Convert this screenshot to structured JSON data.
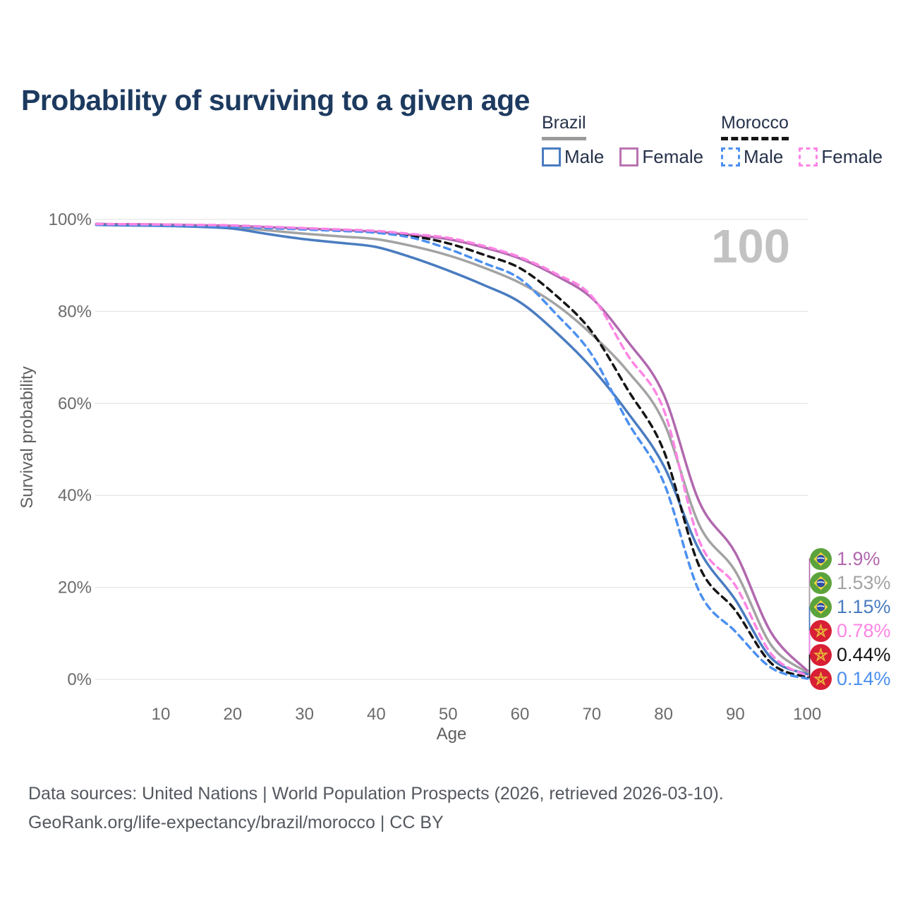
{
  "title": "Probability of surviving to a given age",
  "watermark": "100",
  "legend": {
    "groups": [
      {
        "name": "Brazil",
        "line_style": "solid",
        "items": [
          {
            "label": "Male",
            "color": "#4a7cc0",
            "dashed": false
          },
          {
            "label": "Female",
            "color": "#b973b1",
            "dashed": false
          }
        ]
      },
      {
        "name": "Morocco",
        "line_style": "dashed",
        "items": [
          {
            "label": "Male",
            "color": "#4c90f0",
            "dashed": true
          },
          {
            "label": "Female",
            "color": "#fd85e4",
            "dashed": true
          }
        ]
      }
    ]
  },
  "chart_data": {
    "type": "line",
    "title": "Probability of surviving to a given age",
    "xlabel": "Age",
    "ylabel": "Survival probability",
    "xlim": [
      0,
      100
    ],
    "ylim": [
      0,
      100
    ],
    "grid": "horizontal",
    "legend_position": "top-right",
    "xticks": [
      10,
      20,
      30,
      40,
      50,
      60,
      70,
      80,
      90,
      100
    ],
    "yticks": [
      {
        "value": 0,
        "label": "0%"
      },
      {
        "value": 20,
        "label": "20%"
      },
      {
        "value": 40,
        "label": "40%"
      },
      {
        "value": 60,
        "label": "60%"
      },
      {
        "value": 80,
        "label": "80%"
      },
      {
        "value": 100,
        "label": "100%"
      }
    ],
    "x": [
      1,
      5,
      10,
      15,
      20,
      25,
      30,
      35,
      40,
      45,
      50,
      55,
      60,
      65,
      70,
      75,
      80,
      85,
      90,
      95,
      100
    ],
    "series": [
      {
        "name": "Brazil Male",
        "color": "#4a7cc0",
        "dashed": false,
        "end_value_label": "1.15%",
        "values": [
          98.8,
          98.7,
          98.6,
          98.4,
          98.0,
          96.8,
          95.7,
          94.9,
          94.0,
          91.7,
          88.9,
          85.7,
          82.0,
          75.5,
          67.7,
          58.0,
          46.5,
          28.0,
          17.3,
          4.6,
          1.15
        ]
      },
      {
        "name": "Brazil Female",
        "color": "#b168ae",
        "dashed": false,
        "end_value_label": "1.9%",
        "values": [
          99.0,
          98.95,
          98.9,
          98.75,
          98.6,
          98.3,
          98.0,
          97.7,
          97.3,
          96.6,
          95.7,
          93.9,
          91.5,
          87.8,
          82.9,
          73.5,
          62.0,
          38.5,
          27.5,
          10.1,
          1.9
        ]
      },
      {
        "name": "Brazil Both sexes",
        "color": "#a3a3a3",
        "dashed": false,
        "end_value_label": "1.53%",
        "values": [
          98.9,
          98.85,
          98.75,
          98.6,
          98.3,
          97.6,
          96.9,
          96.3,
          95.7,
          94.2,
          92.2,
          89.5,
          86.2,
          81.5,
          75.0,
          67.0,
          56.0,
          33.5,
          23.5,
          7.4,
          1.53
        ]
      },
      {
        "name": "Morocco Male",
        "color": "#4c90f0",
        "dashed": true,
        "end_value_label": "0.14%",
        "values": [
          98.9,
          98.8,
          98.7,
          98.6,
          98.4,
          98.1,
          97.8,
          97.5,
          97.1,
          96.0,
          93.6,
          90.5,
          87.1,
          79.5,
          70.6,
          56.0,
          42.9,
          19.0,
          10.4,
          2.5,
          0.14
        ]
      },
      {
        "name": "Morocco Female",
        "color": "#fd85e4",
        "dashed": true,
        "end_value_label": "0.78%",
        "values": [
          99.0,
          98.95,
          98.9,
          98.8,
          98.7,
          98.4,
          98.1,
          97.8,
          97.5,
          96.8,
          96.0,
          94.2,
          91.8,
          88.2,
          83.3,
          70.5,
          58.7,
          30.0,
          20.4,
          5.5,
          0.78
        ]
      },
      {
        "name": "Morocco Both sexes",
        "color": "#151515",
        "dashed": true,
        "end_value_label": "0.44%",
        "values": [
          99.0,
          98.9,
          98.8,
          98.7,
          98.55,
          98.3,
          98.0,
          97.7,
          97.4,
          96.4,
          94.8,
          92.3,
          89.4,
          83.5,
          75.6,
          63.0,
          49.8,
          24.5,
          15.0,
          3.5,
          0.44
        ]
      }
    ]
  },
  "end_labels": [
    {
      "text": "1.9%",
      "flag": "brazil",
      "color": "#b168ae"
    },
    {
      "text": "1.53%",
      "flag": "brazil",
      "color": "#a3a3a3"
    },
    {
      "text": "1.15%",
      "flag": "brazil",
      "color": "#4a7cc0"
    },
    {
      "text": "0.78%",
      "flag": "morocco",
      "color": "#fd85e4"
    },
    {
      "text": "0.44%",
      "flag": "morocco",
      "color": "#151515"
    },
    {
      "text": "0.14%",
      "flag": "morocco",
      "color": "#4c90f0"
    }
  ],
  "footer": {
    "line1": "Data sources: United Nations | World Population Prospects (2026, retrieved 2026-03-10).",
    "line2": "GeoRank.org/life-expectancy/brazil/morocco | CC BY"
  }
}
